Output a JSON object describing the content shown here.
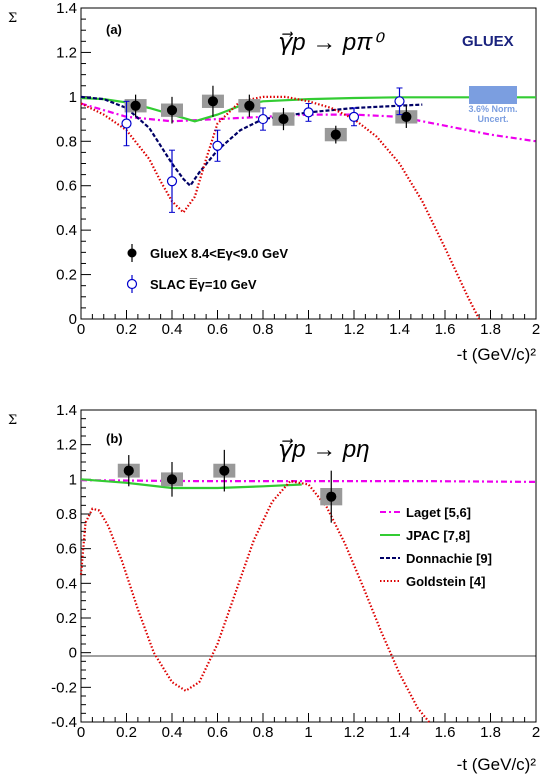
{
  "figure": {
    "y_axis_symbol": "Σ",
    "x_axis_label": "-t (GeV/c)²"
  },
  "chart_data": [
    {
      "type": "scatter",
      "panel_label": "(a)",
      "reaction": "γ⃗p → pπ⁰",
      "logo_text": "GLUEX",
      "norm_box_label": [
        "3.6% Norm.",
        "Uncert."
      ],
      "xlabel": "-t (GeV/c)²",
      "ylabel": "Σ",
      "xlim": [
        0,
        2
      ],
      "ylim": [
        0,
        1.4
      ],
      "x_ticks": [
        "0",
        "0.2",
        "0.4",
        "0.6",
        "0.8",
        "1",
        "1.2",
        "1.4",
        "1.6",
        "1.8",
        "2"
      ],
      "y_ticks": [
        "0",
        "0.2",
        "0.4",
        "0.6",
        "0.8",
        "1",
        "1.2",
        "1.4"
      ],
      "legend_placement": "bottom-left",
      "series": [
        {
          "name": "GlueX 8.4<Eγ<9.0 GeV",
          "marker": "filled-circle",
          "x": [
            0.24,
            0.4,
            0.58,
            0.74,
            0.89,
            1.12,
            1.43
          ],
          "y": [
            0.96,
            0.94,
            0.98,
            0.96,
            0.9,
            0.83,
            0.91
          ],
          "err": [
            0.05,
            0.06,
            0.07,
            0.05,
            0.05,
            0.04,
            0.05
          ],
          "sys": [
            0.03,
            0.03,
            0.03,
            0.03,
            0.03,
            0.03,
            0.03
          ]
        },
        {
          "name": "SLAC E̅γ=10 GeV",
          "marker": "open-circle",
          "x": [
            0.2,
            0.4,
            0.6,
            0.8,
            1.0,
            1.2,
            1.4
          ],
          "y": [
            0.88,
            0.62,
            0.78,
            0.9,
            0.93,
            0.91,
            0.98
          ],
          "err": [
            0.1,
            0.14,
            0.07,
            0.05,
            0.04,
            0.04,
            0.06
          ]
        },
        {
          "name": "Laget [5,6]",
          "color": "#ee00ee",
          "style": "dashdot",
          "x": [
            0,
            0.2,
            0.4,
            0.6,
            0.8,
            1.0,
            1.2,
            1.4,
            1.6,
            1.8,
            2.0
          ],
          "y": [
            0.97,
            0.91,
            0.89,
            0.9,
            0.91,
            0.92,
            0.92,
            0.91,
            0.87,
            0.83,
            0.8
          ]
        },
        {
          "name": "JPAC [7,8]",
          "color": "#33cc33",
          "style": "solid",
          "x": [
            0,
            0.1,
            0.2,
            0.3,
            0.4,
            0.5,
            0.6,
            0.7,
            0.8,
            1.0,
            1.2,
            1.4,
            1.6,
            1.8,
            2.0
          ],
          "y": [
            0.995,
            0.99,
            0.975,
            0.95,
            0.92,
            0.89,
            0.92,
            0.96,
            0.98,
            0.99,
            0.995,
            0.998,
            0.998,
            0.998,
            0.998
          ]
        },
        {
          "name": "Donnachie [9]",
          "color": "#000066",
          "style": "dashed",
          "x": [
            0,
            0.1,
            0.2,
            0.3,
            0.35,
            0.4,
            0.45,
            0.48,
            0.52,
            0.6,
            0.7,
            0.8,
            1.0,
            1.2,
            1.4,
            1.5
          ],
          "y": [
            1.0,
            0.99,
            0.95,
            0.86,
            0.78,
            0.7,
            0.63,
            0.6,
            0.66,
            0.76,
            0.85,
            0.9,
            0.93,
            0.95,
            0.96,
            0.965
          ]
        },
        {
          "name": "Goldstein [4]",
          "color": "#dd0000",
          "style": "dotted",
          "x": [
            0,
            0.1,
            0.2,
            0.3,
            0.35,
            0.4,
            0.45,
            0.5,
            0.55,
            0.6,
            0.7,
            0.8,
            0.9,
            1.0,
            1.1,
            1.2,
            1.3,
            1.4,
            1.5,
            1.6,
            1.7,
            1.75
          ],
          "y": [
            0.97,
            0.92,
            0.85,
            0.72,
            0.62,
            0.53,
            0.48,
            0.55,
            0.72,
            0.88,
            0.98,
            1.0,
            1.0,
            0.98,
            0.95,
            0.9,
            0.82,
            0.7,
            0.53,
            0.32,
            0.1,
            0.0
          ]
        }
      ]
    },
    {
      "type": "scatter",
      "panel_label": "(b)",
      "reaction": "γ⃗p → pη",
      "xlabel": "-t (GeV/c)²",
      "ylabel": "Σ",
      "xlim": [
        0,
        2
      ],
      "ylim": [
        -0.4,
        1.4
      ],
      "x_ticks": [
        "0",
        "0.2",
        "0.4",
        "0.6",
        "0.8",
        "1",
        "1.2",
        "1.4",
        "1.6",
        "1.8",
        "2"
      ],
      "y_ticks": [
        "-0.4",
        "-0.2",
        "0",
        "0.2",
        "0.4",
        "0.6",
        "0.8",
        "1",
        "1.2",
        "1.4"
      ],
      "legend_placement": "right",
      "series": [
        {
          "name": "GlueX",
          "marker": "filled-circle",
          "x": [
            0.21,
            0.4,
            0.63,
            1.1
          ],
          "y": [
            1.05,
            1.0,
            1.05,
            0.9
          ],
          "err": [
            0.09,
            0.1,
            0.12,
            0.15
          ],
          "sys": [
            0.04,
            0.04,
            0.04,
            0.05
          ]
        },
        {
          "name": "Laget [5,6]",
          "color": "#ee00ee",
          "style": "dashdot",
          "x": [
            0,
            0.5,
            1.0,
            1.5,
            2.0
          ],
          "y": [
            0.995,
            0.99,
            0.99,
            0.99,
            0.985
          ]
        },
        {
          "name": "JPAC [7,8]",
          "color": "#33cc33",
          "style": "solid",
          "x": [
            0,
            0.2,
            0.4,
            0.6,
            0.8,
            0.97
          ],
          "y": [
            1.0,
            0.98,
            0.95,
            0.95,
            0.96,
            0.97
          ]
        },
        {
          "name": "Donnachie [9]",
          "color": "#000066",
          "style": "dashed",
          "x": [],
          "y": []
        },
        {
          "name": "Goldstein [4]",
          "color": "#dd0000",
          "style": "dotted",
          "x": [
            0,
            0.02,
            0.05,
            0.08,
            0.12,
            0.18,
            0.25,
            0.32,
            0.4,
            0.46,
            0.52,
            0.6,
            0.68,
            0.76,
            0.84,
            0.92,
            1.0,
            1.08,
            1.16,
            1.24,
            1.32,
            1.4,
            1.48,
            1.53
          ],
          "y": [
            0.45,
            0.75,
            0.83,
            0.82,
            0.73,
            0.53,
            0.25,
            0.0,
            -0.17,
            -0.22,
            -0.17,
            0.05,
            0.35,
            0.65,
            0.87,
            0.99,
            0.97,
            0.84,
            0.63,
            0.38,
            0.12,
            -0.12,
            -0.32,
            -0.4
          ]
        }
      ]
    }
  ]
}
